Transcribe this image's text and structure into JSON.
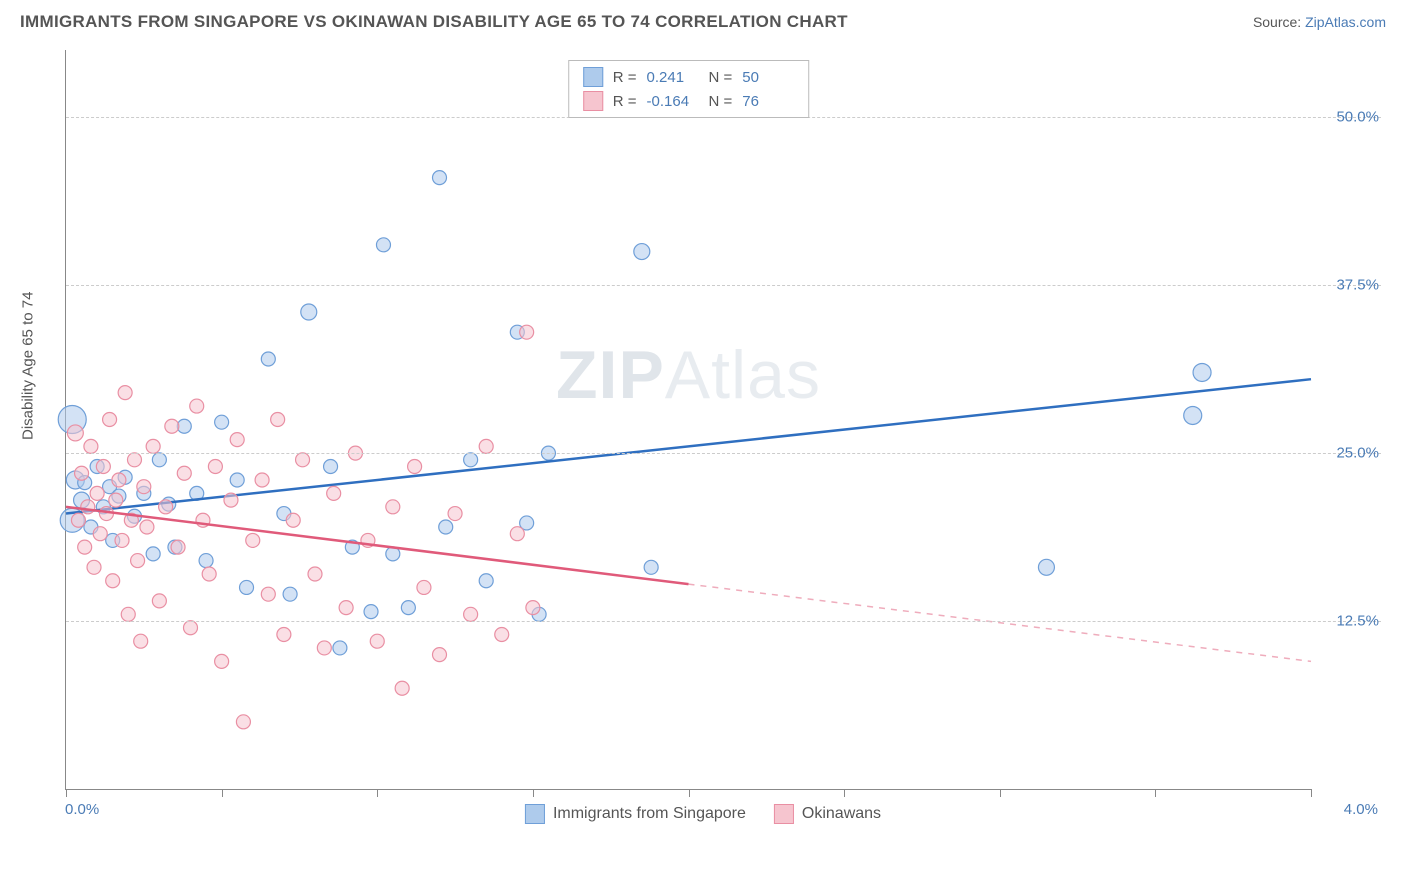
{
  "title": "IMMIGRANTS FROM SINGAPORE VS OKINAWAN DISABILITY AGE 65 TO 74 CORRELATION CHART",
  "source_prefix": "Source: ",
  "source_link": "ZipAtlas.com",
  "yaxis_title": "Disability Age 65 to 74",
  "watermark_a": "ZIP",
  "watermark_b": "Atlas",
  "chart": {
    "type": "scatter",
    "xlim": [
      0.0,
      4.0
    ],
    "ylim": [
      0.0,
      55.0
    ],
    "xticks_minor_step": 0.5,
    "xlabel_min": "0.0%",
    "xlabel_max": "4.0%",
    "yticks": [
      {
        "v": 12.5,
        "label": "12.5%"
      },
      {
        "v": 25.0,
        "label": "25.0%"
      },
      {
        "v": 37.5,
        "label": "37.5%"
      },
      {
        "v": 50.0,
        "label": "50.0%"
      }
    ],
    "grid_color": "#cccccc",
    "axis_color": "#888888",
    "background": "#ffffff",
    "series": [
      {
        "name": "Immigrants from Singapore",
        "fill": "#aecbec",
        "stroke": "#6f9fd8",
        "line_color": "#2f6fc0",
        "R": "0.241",
        "N": "50",
        "trend": {
          "x1": 0.0,
          "y1": 20.5,
          "x2": 4.0,
          "y2": 30.5,
          "dashed_from_x": 4.0
        },
        "points": [
          {
            "x": 0.02,
            "y": 27.5,
            "r": 14
          },
          {
            "x": 0.02,
            "y": 20.0,
            "r": 12
          },
          {
            "x": 0.03,
            "y": 23.0,
            "r": 9
          },
          {
            "x": 0.05,
            "y": 21.5,
            "r": 8
          },
          {
            "x": 0.06,
            "y": 22.8,
            "r": 7
          },
          {
            "x": 0.08,
            "y": 19.5,
            "r": 7
          },
          {
            "x": 0.1,
            "y": 24.0,
            "r": 7
          },
          {
            "x": 0.12,
            "y": 21.0,
            "r": 7
          },
          {
            "x": 0.14,
            "y": 22.5,
            "r": 7
          },
          {
            "x": 0.15,
            "y": 18.5,
            "r": 7
          },
          {
            "x": 0.17,
            "y": 21.8,
            "r": 7
          },
          {
            "x": 0.19,
            "y": 23.2,
            "r": 7
          },
          {
            "x": 0.22,
            "y": 20.3,
            "r": 7
          },
          {
            "x": 0.25,
            "y": 22.0,
            "r": 7
          },
          {
            "x": 0.28,
            "y": 17.5,
            "r": 7
          },
          {
            "x": 0.3,
            "y": 24.5,
            "r": 7
          },
          {
            "x": 0.33,
            "y": 21.2,
            "r": 7
          },
          {
            "x": 0.35,
            "y": 18.0,
            "r": 7
          },
          {
            "x": 0.38,
            "y": 27.0,
            "r": 7
          },
          {
            "x": 0.42,
            "y": 22.0,
            "r": 7
          },
          {
            "x": 0.45,
            "y": 17.0,
            "r": 7
          },
          {
            "x": 0.5,
            "y": 27.3,
            "r": 7
          },
          {
            "x": 0.55,
            "y": 23.0,
            "r": 7
          },
          {
            "x": 0.58,
            "y": 15.0,
            "r": 7
          },
          {
            "x": 0.65,
            "y": 32.0,
            "r": 7
          },
          {
            "x": 0.7,
            "y": 20.5,
            "r": 7
          },
          {
            "x": 0.72,
            "y": 14.5,
            "r": 7
          },
          {
            "x": 0.78,
            "y": 35.5,
            "r": 8
          },
          {
            "x": 0.85,
            "y": 24.0,
            "r": 7
          },
          {
            "x": 0.88,
            "y": 10.5,
            "r": 7
          },
          {
            "x": 0.92,
            "y": 18.0,
            "r": 7
          },
          {
            "x": 0.98,
            "y": 13.2,
            "r": 7
          },
          {
            "x": 1.02,
            "y": 40.5,
            "r": 7
          },
          {
            "x": 1.05,
            "y": 17.5,
            "r": 7
          },
          {
            "x": 1.1,
            "y": 13.5,
            "r": 7
          },
          {
            "x": 1.2,
            "y": 45.5,
            "r": 7
          },
          {
            "x": 1.22,
            "y": 19.5,
            "r": 7
          },
          {
            "x": 1.3,
            "y": 24.5,
            "r": 7
          },
          {
            "x": 1.35,
            "y": 15.5,
            "r": 7
          },
          {
            "x": 1.45,
            "y": 34.0,
            "r": 7
          },
          {
            "x": 1.48,
            "y": 19.8,
            "r": 7
          },
          {
            "x": 1.52,
            "y": 13.0,
            "r": 7
          },
          {
            "x": 1.55,
            "y": 25.0,
            "r": 7
          },
          {
            "x": 1.85,
            "y": 40.0,
            "r": 8
          },
          {
            "x": 1.88,
            "y": 16.5,
            "r": 7
          },
          {
            "x": 3.15,
            "y": 16.5,
            "r": 8
          },
          {
            "x": 3.62,
            "y": 27.8,
            "r": 9
          },
          {
            "x": 3.65,
            "y": 31.0,
            "r": 9
          }
        ]
      },
      {
        "name": "Okinawans",
        "fill": "#f6c5cf",
        "stroke": "#e98fa3",
        "line_color": "#e05a7a",
        "R": "-0.164",
        "N": "76",
        "trend": {
          "x1": 0.0,
          "y1": 21.0,
          "x2": 4.0,
          "y2": 9.5,
          "dashed_from_x": 2.0
        },
        "points": [
          {
            "x": 0.03,
            "y": 26.5,
            "r": 8
          },
          {
            "x": 0.04,
            "y": 20.0,
            "r": 7
          },
          {
            "x": 0.05,
            "y": 23.5,
            "r": 7
          },
          {
            "x": 0.06,
            "y": 18.0,
            "r": 7
          },
          {
            "x": 0.07,
            "y": 21.0,
            "r": 7
          },
          {
            "x": 0.08,
            "y": 25.5,
            "r": 7
          },
          {
            "x": 0.09,
            "y": 16.5,
            "r": 7
          },
          {
            "x": 0.1,
            "y": 22.0,
            "r": 7
          },
          {
            "x": 0.11,
            "y": 19.0,
            "r": 7
          },
          {
            "x": 0.12,
            "y": 24.0,
            "r": 7
          },
          {
            "x": 0.13,
            "y": 20.5,
            "r": 7
          },
          {
            "x": 0.14,
            "y": 27.5,
            "r": 7
          },
          {
            "x": 0.15,
            "y": 15.5,
            "r": 7
          },
          {
            "x": 0.16,
            "y": 21.5,
            "r": 7
          },
          {
            "x": 0.17,
            "y": 23.0,
            "r": 7
          },
          {
            "x": 0.18,
            "y": 18.5,
            "r": 7
          },
          {
            "x": 0.19,
            "y": 29.5,
            "r": 7
          },
          {
            "x": 0.2,
            "y": 13.0,
            "r": 7
          },
          {
            "x": 0.21,
            "y": 20.0,
            "r": 7
          },
          {
            "x": 0.22,
            "y": 24.5,
            "r": 7
          },
          {
            "x": 0.23,
            "y": 17.0,
            "r": 7
          },
          {
            "x": 0.24,
            "y": 11.0,
            "r": 7
          },
          {
            "x": 0.25,
            "y": 22.5,
            "r": 7
          },
          {
            "x": 0.26,
            "y": 19.5,
            "r": 7
          },
          {
            "x": 0.28,
            "y": 25.5,
            "r": 7
          },
          {
            "x": 0.3,
            "y": 14.0,
            "r": 7
          },
          {
            "x": 0.32,
            "y": 21.0,
            "r": 7
          },
          {
            "x": 0.34,
            "y": 27.0,
            "r": 7
          },
          {
            "x": 0.36,
            "y": 18.0,
            "r": 7
          },
          {
            "x": 0.38,
            "y": 23.5,
            "r": 7
          },
          {
            "x": 0.4,
            "y": 12.0,
            "r": 7
          },
          {
            "x": 0.42,
            "y": 28.5,
            "r": 7
          },
          {
            "x": 0.44,
            "y": 20.0,
            "r": 7
          },
          {
            "x": 0.46,
            "y": 16.0,
            "r": 7
          },
          {
            "x": 0.48,
            "y": 24.0,
            "r": 7
          },
          {
            "x": 0.5,
            "y": 9.5,
            "r": 7
          },
          {
            "x": 0.53,
            "y": 21.5,
            "r": 7
          },
          {
            "x": 0.55,
            "y": 26.0,
            "r": 7
          },
          {
            "x": 0.57,
            "y": 5.0,
            "r": 7
          },
          {
            "x": 0.6,
            "y": 18.5,
            "r": 7
          },
          {
            "x": 0.63,
            "y": 23.0,
            "r": 7
          },
          {
            "x": 0.65,
            "y": 14.5,
            "r": 7
          },
          {
            "x": 0.68,
            "y": 27.5,
            "r": 7
          },
          {
            "x": 0.7,
            "y": 11.5,
            "r": 7
          },
          {
            "x": 0.73,
            "y": 20.0,
            "r": 7
          },
          {
            "x": 0.76,
            "y": 24.5,
            "r": 7
          },
          {
            "x": 0.8,
            "y": 16.0,
            "r": 7
          },
          {
            "x": 0.83,
            "y": 10.5,
            "r": 7
          },
          {
            "x": 0.86,
            "y": 22.0,
            "r": 7
          },
          {
            "x": 0.9,
            "y": 13.5,
            "r": 7
          },
          {
            "x": 0.93,
            "y": 25.0,
            "r": 7
          },
          {
            "x": 0.97,
            "y": 18.5,
            "r": 7
          },
          {
            "x": 1.0,
            "y": 11.0,
            "r": 7
          },
          {
            "x": 1.05,
            "y": 21.0,
            "r": 7
          },
          {
            "x": 1.08,
            "y": 7.5,
            "r": 7
          },
          {
            "x": 1.12,
            "y": 24.0,
            "r": 7
          },
          {
            "x": 1.15,
            "y": 15.0,
            "r": 7
          },
          {
            "x": 1.2,
            "y": 10.0,
            "r": 7
          },
          {
            "x": 1.25,
            "y": 20.5,
            "r": 7
          },
          {
            "x": 1.3,
            "y": 13.0,
            "r": 7
          },
          {
            "x": 1.35,
            "y": 25.5,
            "r": 7
          },
          {
            "x": 1.4,
            "y": 11.5,
            "r": 7
          },
          {
            "x": 1.45,
            "y": 19.0,
            "r": 7
          },
          {
            "x": 1.48,
            "y": 34.0,
            "r": 7
          },
          {
            "x": 1.5,
            "y": 13.5,
            "r": 7
          }
        ]
      }
    ]
  },
  "bottom_legend": [
    {
      "label": "Immigrants from Singapore"
    },
    {
      "label": "Okinawans"
    }
  ]
}
